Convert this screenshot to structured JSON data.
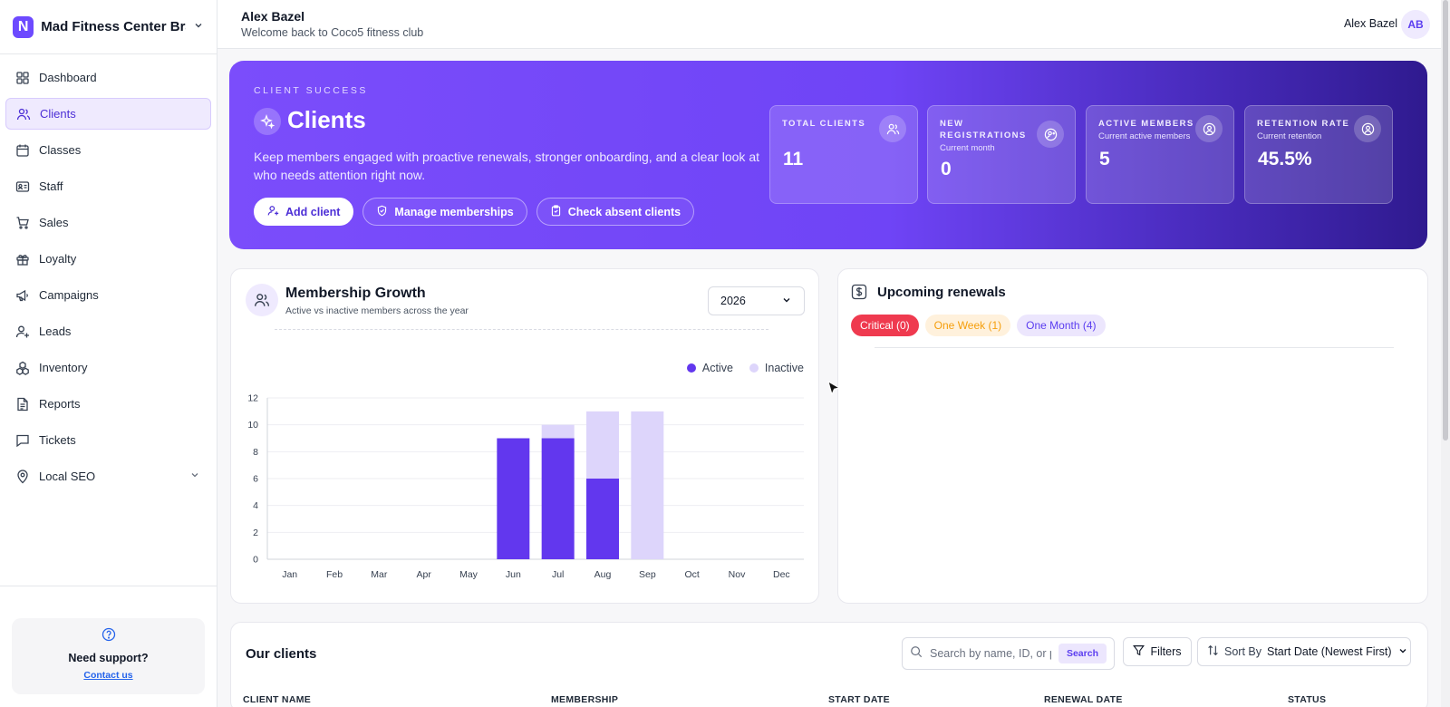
{
  "brand": {
    "logo_letter": "N",
    "name": "Mad Fitness Center Bra..."
  },
  "sidebar": {
    "items": [
      {
        "label": "Dashboard",
        "icon": "grid-icon"
      },
      {
        "label": "Clients",
        "icon": "users-icon",
        "active": true
      },
      {
        "label": "Classes",
        "icon": "calendar-icon"
      },
      {
        "label": "Staff",
        "icon": "id-card-icon"
      },
      {
        "label": "Sales",
        "icon": "cart-icon"
      },
      {
        "label": "Loyalty",
        "icon": "gift-icon"
      },
      {
        "label": "Campaigns",
        "icon": "megaphone-icon"
      },
      {
        "label": "Leads",
        "icon": "user-plus-icon"
      },
      {
        "label": "Inventory",
        "icon": "boxes-icon"
      },
      {
        "label": "Reports",
        "icon": "file-icon"
      },
      {
        "label": "Tickets",
        "icon": "message-icon"
      },
      {
        "label": "Local SEO",
        "icon": "map-pin-icon",
        "has_chevron": true
      }
    ],
    "support": {
      "title": "Need support?",
      "link": "Contact us"
    }
  },
  "header": {
    "user_name": "Alex Bazel",
    "welcome": "Welcome back to Coco5 fitness club",
    "right_name": "Alex Bazel",
    "avatar_initials": "AB"
  },
  "hero": {
    "kicker": "CLIENT SUCCESS",
    "title": "Clients",
    "description": "Keep members engaged with proactive renewals, stronger onboarding, and a clear look at who needs attention right now.",
    "buttons": {
      "add": "Add client",
      "memberships": "Manage memberships",
      "absent": "Check absent clients"
    },
    "stats": [
      {
        "label": "TOTAL CLIENTS",
        "sub": "",
        "value": "11"
      },
      {
        "label": "NEW REGISTRATIONS",
        "sub": "Current month",
        "value": "0"
      },
      {
        "label": "ACTIVE MEMBERS",
        "sub": "Current active members",
        "value": "5"
      },
      {
        "label": "RETENTION RATE",
        "sub": "Current retention",
        "value": "45.5%"
      }
    ]
  },
  "growth": {
    "title": "Membership Growth",
    "subtitle": "Active vs inactive members across the year",
    "year": "2026",
    "legend_active": "Active",
    "legend_inactive": "Inactive"
  },
  "chart_data": {
    "type": "bar",
    "stacked": true,
    "categories": [
      "Jan",
      "Feb",
      "Mar",
      "Apr",
      "May",
      "Jun",
      "Jul",
      "Aug",
      "Sep",
      "Oct",
      "Nov",
      "Dec"
    ],
    "series": [
      {
        "name": "Active",
        "color": "#6237ee",
        "values": [
          0,
          0,
          0,
          0,
          0,
          9,
          9,
          6,
          0,
          0,
          0,
          0
        ]
      },
      {
        "name": "Inactive",
        "color": "#ddd5fb",
        "values": [
          0,
          0,
          0,
          0,
          0,
          0,
          1,
          5,
          11,
          0,
          0,
          0
        ]
      }
    ],
    "yticks": [
      "0",
      "2",
      "4",
      "6",
      "8",
      "10",
      "12"
    ],
    "ylim": [
      0,
      12
    ],
    "grid": true,
    "legend_position": "top-right"
  },
  "renewals": {
    "title": "Upcoming renewals",
    "tabs": {
      "critical": "Critical (0)",
      "week": "One Week (1)",
      "month": "One Month (4)"
    }
  },
  "clients": {
    "title": "Our clients",
    "search_placeholder": "Search by name, ID, or pl",
    "search_button": "Search",
    "filters": "Filters",
    "sort_prefix": "Sort By",
    "sort_value": "Start Date (Newest First)",
    "columns": [
      "CLIENT NAME",
      "MEMBERSHIP",
      "START DATE",
      "RENEWAL DATE",
      "STATUS"
    ]
  }
}
